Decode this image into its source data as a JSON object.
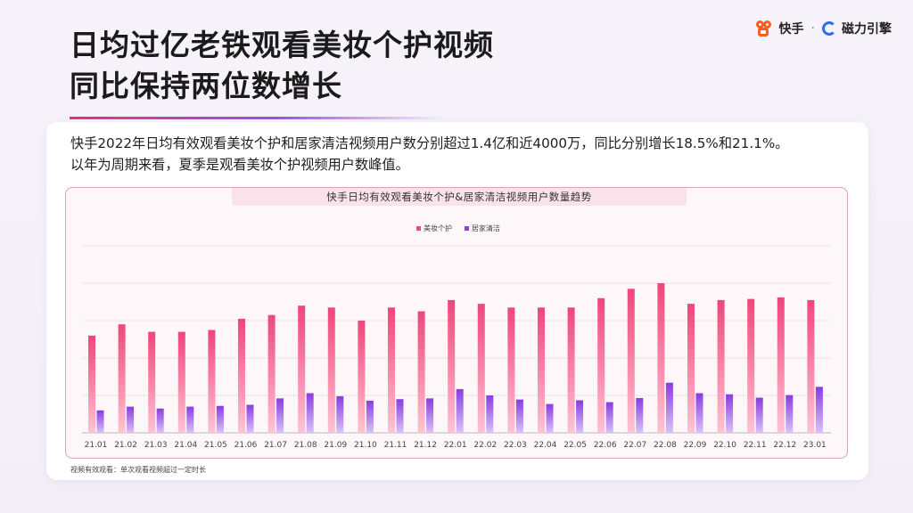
{
  "title": {
    "line1": "日均过亿老铁观看美妆个护视频",
    "line2": "同比保持两位数增长"
  },
  "logo": {
    "brand1": "快手",
    "separator": "·",
    "brand2": "磁力引擎",
    "brand1_icon": "kuaishou-logo-icon",
    "brand2_icon": "cili-engine-logo-icon"
  },
  "description": {
    "line1": "快手2022年日均有效观看美妆个护和居家清洁视频用户数分别超过1.4亿和近4000万，同比分别增长18.5%和21.1%。",
    "line2": "以年为周期来看，夏季是观看美妆个护视频用户数峰值。"
  },
  "footnote": "视频有效观看：单次观看视频超过一定时长",
  "colors": {
    "beauty": "#f0497c",
    "home": "#8e3fe0",
    "accent": "#e0367a"
  },
  "chart_data": {
    "type": "bar",
    "title": "快手日均有效观看美妆个护&居家清洁视频用户数量趋势",
    "categories": [
      "21.01",
      "21.02",
      "21.03",
      "21.04",
      "21.05",
      "21.06",
      "21.07",
      "21.08",
      "21.09",
      "21.10",
      "21.11",
      "21.12",
      "22.01",
      "22.02",
      "22.03",
      "22.04",
      "22.05",
      "22.06",
      "22.07",
      "22.08",
      "22.09",
      "22.10",
      "22.11",
      "22.12",
      "23.01"
    ],
    "series": [
      {
        "name": "美妆个护",
        "values": [
          26,
          29,
          27,
          27,
          27.5,
          30.5,
          31.5,
          34,
          33.5,
          30,
          33.5,
          32.5,
          35.5,
          34.5,
          33.5,
          33.5,
          33.5,
          36,
          38.5,
          40,
          34.5,
          35.5,
          35.8,
          36.2,
          35.5
        ]
      },
      {
        "name": "居家清洁",
        "values": [
          6,
          7,
          6.5,
          7,
          7.2,
          7.5,
          9.2,
          10.6,
          9.8,
          8.6,
          9,
          9.2,
          11.7,
          10,
          8.9,
          7.7,
          8.7,
          8.2,
          9.3,
          13.4,
          10.6,
          10.3,
          9.4,
          10.1,
          12.3
        ]
      }
    ],
    "ylim": [
      0,
      50
    ],
    "grid": true,
    "legend_position": "top-center"
  }
}
